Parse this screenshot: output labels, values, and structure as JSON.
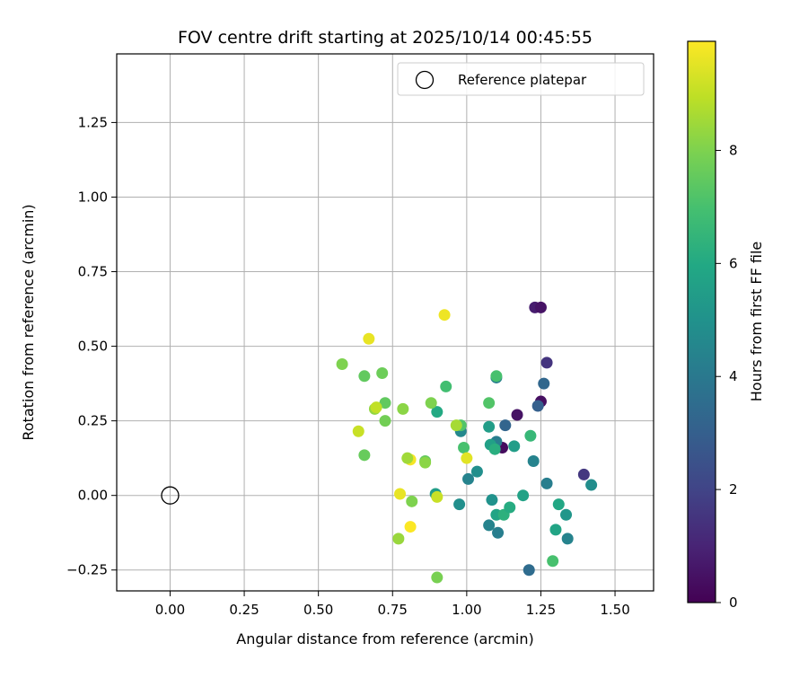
{
  "chart_data": {
    "type": "scatter",
    "title": "FOV centre drift starting at 2025/10/14 00:45:55",
    "xlabel": "Angular distance from reference (arcmin)",
    "ylabel": "Rotation from reference (arcmin)",
    "xlim": [
      -0.18,
      1.63
    ],
    "ylim": [
      -0.32,
      1.48
    ],
    "xticks": [
      0.0,
      0.25,
      0.5,
      0.75,
      1.0,
      1.25,
      1.5
    ],
    "xtick_labels": [
      "0.00",
      "0.25",
      "0.50",
      "0.75",
      "1.00",
      "1.25",
      "1.50"
    ],
    "yticks": [
      -0.25,
      0.0,
      0.25,
      0.5,
      0.75,
      1.0,
      1.25
    ],
    "ytick_labels": [
      "−0.25",
      "0.00",
      "0.25",
      "0.50",
      "0.75",
      "1.00",
      "1.25"
    ],
    "grid": true,
    "legend": {
      "position": "top-right",
      "entries": [
        {
          "label": "Reference platepar",
          "marker": "hollow-circle"
        }
      ]
    },
    "reference_point": {
      "x": 0.0,
      "y": 0.0,
      "label": "Reference platepar"
    },
    "colorbar": {
      "label": "Hours from first FF file",
      "colormap": "viridis",
      "range": [
        0,
        9.93
      ],
      "ticks": [
        0,
        2,
        4,
        6,
        8
      ],
      "tick_labels": [
        "0",
        "2",
        "4",
        "6",
        "8"
      ]
    },
    "points": [
      {
        "x": 1.23,
        "y": 0.63,
        "c": 0.8
      },
      {
        "x": 1.25,
        "y": 0.63,
        "c": 0.5
      },
      {
        "x": 1.27,
        "y": 0.445,
        "c": 1.5
      },
      {
        "x": 1.26,
        "y": 0.375,
        "c": 3.3
      },
      {
        "x": 1.25,
        "y": 0.315,
        "c": 0.4
      },
      {
        "x": 1.24,
        "y": 0.3,
        "c": 3.0
      },
      {
        "x": 1.17,
        "y": 0.27,
        "c": 0.5
      },
      {
        "x": 1.13,
        "y": 0.235,
        "c": 3.2
      },
      {
        "x": 1.12,
        "y": 0.16,
        "c": 0.3
      },
      {
        "x": 1.1,
        "y": 0.395,
        "c": 4.2
      },
      {
        "x": 1.1,
        "y": 0.18,
        "c": 4.2
      },
      {
        "x": 1.395,
        "y": 0.07,
        "c": 1.6
      },
      {
        "x": 1.42,
        "y": 0.035,
        "c": 4.8
      },
      {
        "x": 1.27,
        "y": 0.04,
        "c": 4.2
      },
      {
        "x": 1.225,
        "y": 0.115,
        "c": 4.4
      },
      {
        "x": 1.215,
        "y": 0.2,
        "c": 6.6
      },
      {
        "x": 1.16,
        "y": 0.165,
        "c": 5.5
      },
      {
        "x": 1.08,
        "y": 0.17,
        "c": 5.6
      },
      {
        "x": 1.095,
        "y": 0.155,
        "c": 6.2
      },
      {
        "x": 1.075,
        "y": 0.23,
        "c": 5.5
      },
      {
        "x": 1.075,
        "y": 0.31,
        "c": 7.2
      },
      {
        "x": 1.1,
        "y": 0.4,
        "c": 7.0
      },
      {
        "x": 0.98,
        "y": 0.215,
        "c": 4.6
      },
      {
        "x": 0.98,
        "y": 0.235,
        "c": 7.2
      },
      {
        "x": 0.965,
        "y": 0.235,
        "c": 8.6
      },
      {
        "x": 0.99,
        "y": 0.16,
        "c": 7.0
      },
      {
        "x": 1.0,
        "y": 0.125,
        "c": 9.5
      },
      {
        "x": 1.035,
        "y": 0.08,
        "c": 4.9
      },
      {
        "x": 1.005,
        "y": 0.055,
        "c": 4.4
      },
      {
        "x": 0.975,
        "y": -0.03,
        "c": 4.9
      },
      {
        "x": 1.085,
        "y": -0.015,
        "c": 5.0
      },
      {
        "x": 1.1,
        "y": -0.065,
        "c": 5.8
      },
      {
        "x": 1.125,
        "y": -0.065,
        "c": 6.3
      },
      {
        "x": 1.145,
        "y": -0.04,
        "c": 6.1
      },
      {
        "x": 1.19,
        "y": 0.0,
        "c": 5.7
      },
      {
        "x": 1.075,
        "y": -0.1,
        "c": 4.4
      },
      {
        "x": 1.105,
        "y": -0.125,
        "c": 4.2
      },
      {
        "x": 1.21,
        "y": -0.25,
        "c": 3.5
      },
      {
        "x": 1.29,
        "y": -0.22,
        "c": 7.0
      },
      {
        "x": 1.3,
        "y": -0.115,
        "c": 5.8
      },
      {
        "x": 1.31,
        "y": -0.03,
        "c": 5.9
      },
      {
        "x": 1.335,
        "y": -0.065,
        "c": 5.2
      },
      {
        "x": 1.34,
        "y": -0.145,
        "c": 4.4
      },
      {
        "x": 0.93,
        "y": 0.365,
        "c": 6.9
      },
      {
        "x": 0.925,
        "y": 0.605,
        "c": 9.7
      },
      {
        "x": 0.9,
        "y": 0.28,
        "c": 6.0
      },
      {
        "x": 0.88,
        "y": 0.31,
        "c": 8.0
      },
      {
        "x": 0.86,
        "y": 0.115,
        "c": 7.5
      },
      {
        "x": 0.86,
        "y": 0.11,
        "c": 8.2
      },
      {
        "x": 0.81,
        "y": 0.12,
        "c": 9.8
      },
      {
        "x": 0.8,
        "y": 0.125,
        "c": 8.5
      },
      {
        "x": 0.785,
        "y": 0.29,
        "c": 8.2
      },
      {
        "x": 0.775,
        "y": 0.005,
        "c": 9.6
      },
      {
        "x": 0.815,
        "y": -0.02,
        "c": 8.0
      },
      {
        "x": 0.895,
        "y": 0.005,
        "c": 5.5
      },
      {
        "x": 0.9,
        "y": -0.005,
        "c": 9.1
      },
      {
        "x": 0.81,
        "y": -0.105,
        "c": 9.9
      },
      {
        "x": 0.77,
        "y": -0.145,
        "c": 8.4
      },
      {
        "x": 0.9,
        "y": -0.275,
        "c": 7.9
      },
      {
        "x": 0.725,
        "y": 0.31,
        "c": 7.5
      },
      {
        "x": 0.725,
        "y": 0.25,
        "c": 7.8
      },
      {
        "x": 0.715,
        "y": 0.41,
        "c": 7.7
      },
      {
        "x": 0.69,
        "y": 0.29,
        "c": 8.3
      },
      {
        "x": 0.695,
        "y": 0.295,
        "c": 9.0
      },
      {
        "x": 0.67,
        "y": 0.525,
        "c": 9.6
      },
      {
        "x": 0.655,
        "y": 0.4,
        "c": 7.5
      },
      {
        "x": 0.635,
        "y": 0.215,
        "c": 9.1
      },
      {
        "x": 0.655,
        "y": 0.135,
        "c": 7.6
      },
      {
        "x": 0.58,
        "y": 0.44,
        "c": 8.0
      }
    ]
  }
}
